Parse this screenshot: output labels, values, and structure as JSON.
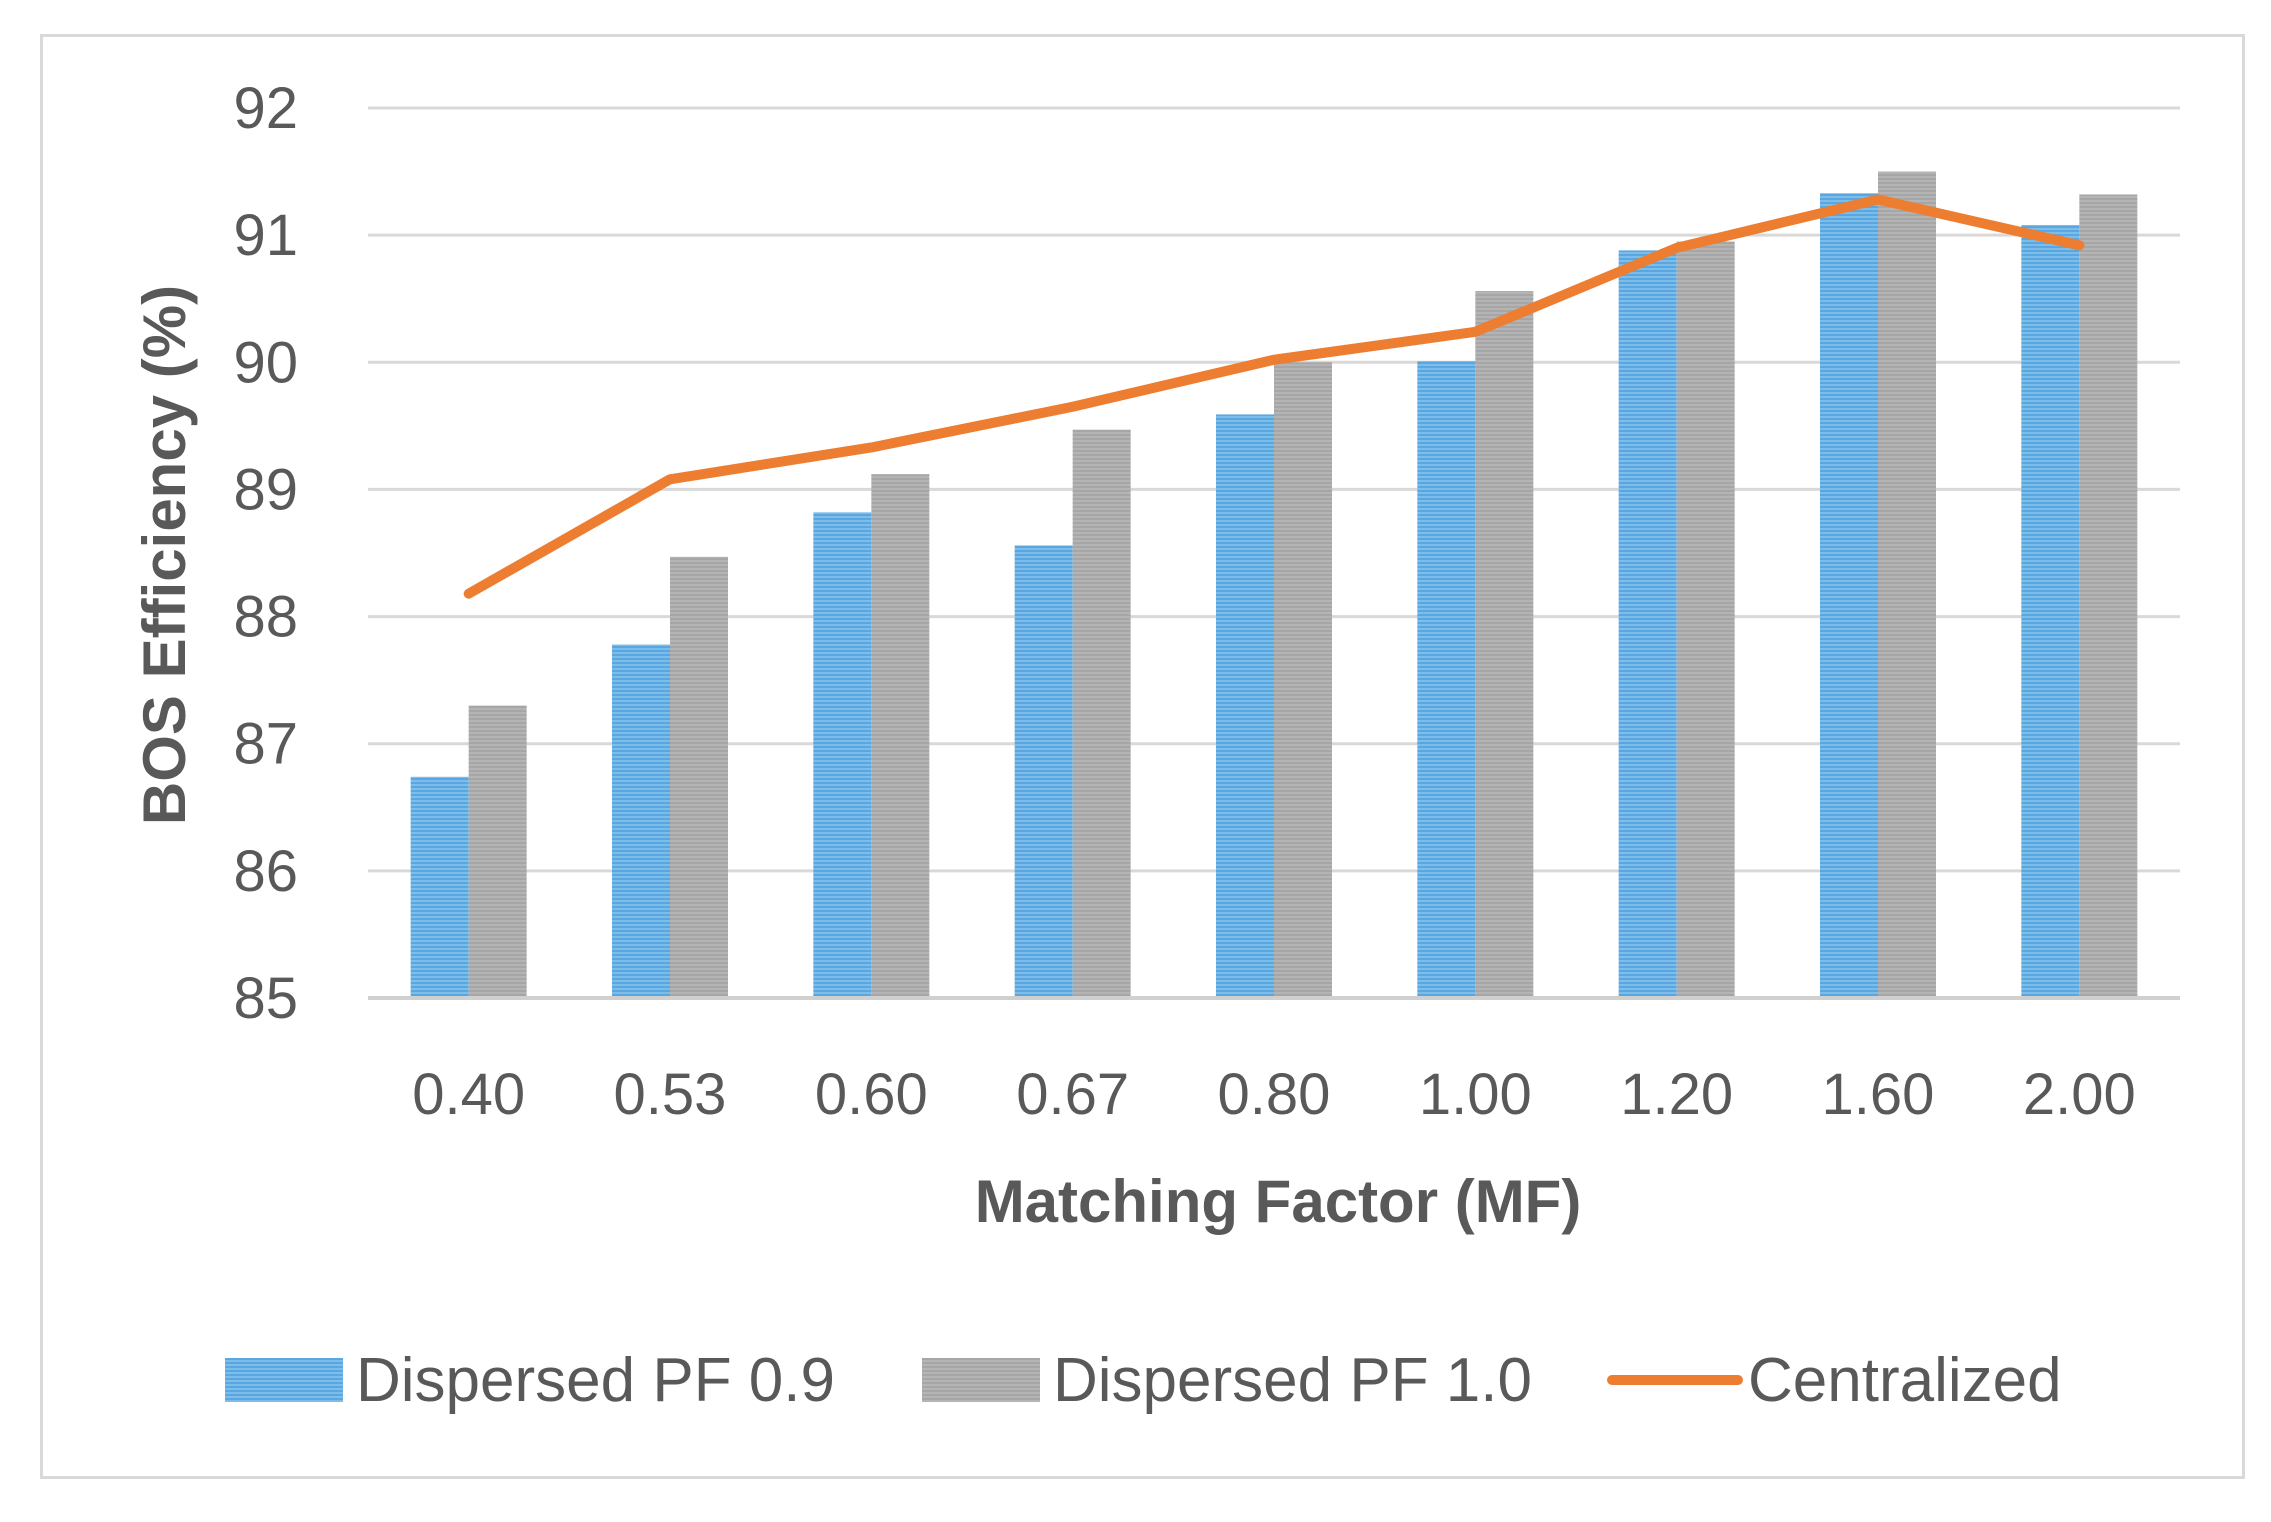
{
  "chart_data": {
    "type": "bar",
    "title": "",
    "xlabel": "Matching Factor (MF)",
    "ylabel": "BOS Efficiency (%)",
    "ylim": [
      85,
      92
    ],
    "yticks": [
      "85",
      "86",
      "87",
      "88",
      "89",
      "90",
      "91",
      "92"
    ],
    "grid": true,
    "legend_position": "bottom",
    "categories": [
      "0.40",
      "0.53",
      "0.60",
      "0.67",
      "0.80",
      "1.00",
      "1.20",
      "1.60",
      "2.00"
    ],
    "series": [
      {
        "name": "Dispersed PF 0.9",
        "kind": "bar",
        "color": "#5b9bd5",
        "values": [
          86.74,
          87.78,
          88.82,
          88.56,
          89.59,
          90.01,
          90.88,
          91.33,
          91.08
        ]
      },
      {
        "name": "Dispersed PF 1.0",
        "kind": "bar",
        "color": "#a5a5a5",
        "values": [
          87.3,
          88.47,
          89.12,
          89.47,
          90.0,
          90.56,
          90.95,
          91.5,
          91.32
        ]
      },
      {
        "name": "Centralized",
        "kind": "line",
        "color": "#ed7d31",
        "values": [
          88.18,
          89.08,
          89.33,
          89.65,
          90.02,
          90.24,
          90.9,
          91.28,
          90.92
        ]
      }
    ]
  }
}
